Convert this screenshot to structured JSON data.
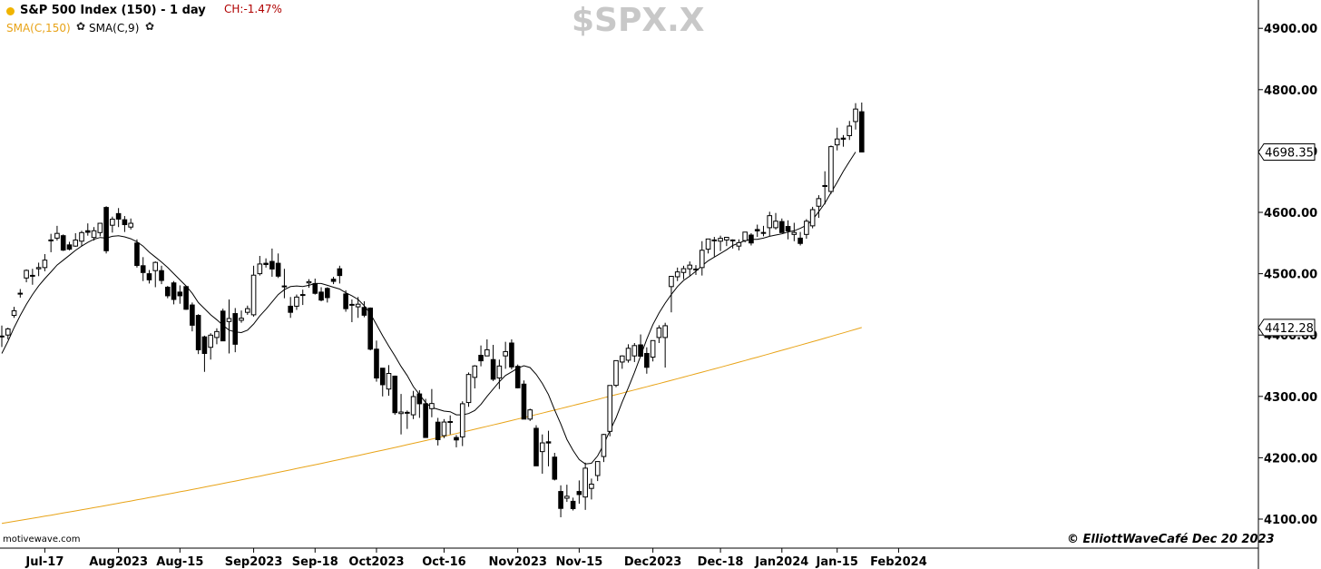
{
  "header": {
    "instrument": "S&P 500 Index (150) - 1 day",
    "change": "CH:-1.47%",
    "indicator_sma150": "SMA(C,150)",
    "indicator_sma9": "SMA(C,9)",
    "watermark_symbol": "$SPX.X",
    "credit": "motivewave.com",
    "copyright": "© ElliottWaveCafé Dec 20 2023"
  },
  "colors": {
    "sma150": "#e8a317",
    "sma9": "#000000",
    "candle_up_fill": "#ffffff",
    "candle_down_fill": "#000000",
    "change_text": "#b00000"
  },
  "chart_data": {
    "type": "candlestick",
    "title": "S&P 500 Index (150) - 1 day",
    "ylim": [
      4050,
      4960
    ],
    "y_ticks": [
      4100,
      4200,
      4300,
      4400,
      4500,
      4600,
      4700,
      4800,
      4900
    ],
    "y_tick_labels": [
      "4100.00",
      "4200.00",
      "4300.00",
      "4400.00",
      "4500.00",
      "4600.00",
      "4700.00",
      "4800.00",
      "4900.00"
    ],
    "x_ticks": [
      {
        "label": "Jul-17",
        "bar": 7
      },
      {
        "label": "Aug2023",
        "bar": 19
      },
      {
        "label": "Aug-15",
        "bar": 29
      },
      {
        "label": "Sep2023",
        "bar": 41
      },
      {
        "label": "Sep-18",
        "bar": 51
      },
      {
        "label": "Oct2023",
        "bar": 61
      },
      {
        "label": "Oct-16",
        "bar": 72
      },
      {
        "label": "Nov2023",
        "bar": 84
      },
      {
        "label": "Nov-15",
        "bar": 94
      },
      {
        "label": "Dec2023",
        "bar": 106
      },
      {
        "label": "Dec-18",
        "bar": 117
      },
      {
        "label": "Jan2024",
        "bar": 127
      },
      {
        "label": "Jan-15",
        "bar": 136
      },
      {
        "label": "Feb2024",
        "bar": 146
      }
    ],
    "last_price_labels": [
      {
        "label": "4698.35",
        "value": 4698.35,
        "series": "SMA(C,9)"
      },
      {
        "label": "4412.28",
        "value": 4412.28,
        "series": "SMA(C,150)"
      }
    ],
    "candles": [
      [
        4398.4,
        4415.5,
        4380.5,
        4398.4
      ],
      [
        4400.0,
        4412.0,
        4393.0,
        4410.0
      ],
      [
        4432.0,
        4446.0,
        4428.0,
        4439.6
      ],
      [
        4467.0,
        4475.0,
        4461.0,
        4468.2
      ],
      [
        4493.0,
        4507.0,
        4486.0,
        4505.4
      ],
      [
        4497.0,
        4508.0,
        4482.0,
        4497.3
      ],
      [
        4508.0,
        4518.0,
        4496.0,
        4510.0
      ],
      [
        4510.0,
        4532.0,
        4504.0,
        4522.1
      ],
      [
        4555.0,
        4565.0,
        4535.0,
        4554.7
      ],
      [
        4558.0,
        4578.0,
        4554.0,
        4565.7
      ],
      [
        4562.0,
        4564.0,
        4537.0,
        4538.5
      ],
      [
        4547.0,
        4552.0,
        4538.0,
        4540.0
      ],
      [
        4545.0,
        4566.0,
        4544.0,
        4554.9
      ],
      [
        4553.0,
        4570.0,
        4545.0,
        4567.0
      ],
      [
        4570.0,
        4582.0,
        4562.0,
        4567.5
      ],
      [
        4559.0,
        4576.0,
        4554.0,
        4570.0
      ],
      [
        4567.0,
        4583.0,
        4561.0,
        4582.2
      ],
      [
        4608.0,
        4610.0,
        4533.0,
        4537.4
      ],
      [
        4579.0,
        4593.0,
        4567.0,
        4588.9
      ],
      [
        4598.0,
        4607.0,
        4576.0,
        4589.0
      ],
      [
        4588.0,
        4594.0,
        4568.0,
        4580.0
      ],
      [
        4576.0,
        4590.0,
        4572.0,
        4582.2
      ],
      [
        4550.0,
        4556.0,
        4510.0,
        4513.4
      ],
      [
        4513.0,
        4527.0,
        4488.0,
        4501.9
      ],
      [
        4500.0,
        4506.0,
        4484.0,
        4490.0
      ],
      [
        4505.0,
        4520.0,
        4478.0,
        4518.4
      ],
      [
        4505.0,
        4513.0,
        4483.0,
        4489.0
      ],
      [
        4478.0,
        4480.0,
        4460.0,
        4464.0
      ],
      [
        4485.0,
        4488.0,
        4450.0,
        4458.0
      ],
      [
        4470.0,
        4481.0,
        4451.0,
        4464.0
      ],
      [
        4479.0,
        4479.0,
        4441.0,
        4442.0
      ],
      [
        4449.0,
        4453.0,
        4406.0,
        4416.0
      ],
      [
        4432.0,
        4434.0,
        4369.0,
        4376.0
      ],
      [
        4397.0,
        4399.0,
        4340.0,
        4370.0
      ],
      [
        4380.0,
        4403.0,
        4360.0,
        4399.8
      ],
      [
        4396.0,
        4411.0,
        4385.0,
        4405.7
      ],
      [
        4439.0,
        4443.0,
        4390.0,
        4390.5
      ],
      [
        4422.0,
        4458.0,
        4370.0,
        4427.0
      ],
      [
        4435.0,
        4444.0,
        4372.0,
        4385.0
      ],
      [
        4424.0,
        4440.0,
        4420.0,
        4427.5
      ],
      [
        4437.0,
        4448.0,
        4433.0,
        4443.0
      ],
      [
        4433.0,
        4513.0,
        4430.0,
        4497.6
      ],
      [
        4500.0,
        4529.0,
        4497.0,
        4515.8
      ],
      [
        4517.0,
        4525.0,
        4510.0,
        4515.0
      ],
      [
        4520.0,
        4541.0,
        4495.0,
        4507.7
      ],
      [
        4517.0,
        4533.0,
        4493.0,
        4496.0
      ],
      [
        4480.0,
        4508.0,
        4460.0,
        4480.0
      ],
      [
        4447.0,
        4462.0,
        4428.0,
        4437.0
      ],
      [
        4447.0,
        4466.0,
        4441.0,
        4461.9
      ],
      [
        4466.0,
        4474.0,
        4449.0,
        4465.5
      ],
      [
        4485.0,
        4491.0,
        4477.0,
        4487.0
      ],
      [
        4484.0,
        4492.0,
        4466.0,
        4468.0
      ],
      [
        4470.0,
        4478.0,
        4455.0,
        4457.0
      ],
      [
        4476.0,
        4478.0,
        4453.0,
        4461.0
      ],
      [
        4491.0,
        4495.0,
        4483.0,
        4487.5
      ],
      [
        4508.0,
        4513.0,
        4484.0,
        4497.0
      ],
      [
        4467.0,
        4473.0,
        4438.0,
        4443.0
      ],
      [
        4450.0,
        4458.0,
        4421.0,
        4450.0
      ],
      [
        4446.0,
        4462.0,
        4428.0,
        4450.3
      ],
      [
        4445.0,
        4455.0,
        4429.0,
        4432.3
      ],
      [
        4444.0,
        4445.0,
        4375.0,
        4377.0
      ],
      [
        4377.0,
        4391.0,
        4324.0,
        4330.0
      ],
      [
        4346.0,
        4346.0,
        4300.0,
        4319.0
      ],
      [
        4312.0,
        4351.0,
        4301.0,
        4337.4
      ],
      [
        4333.0,
        4334.0,
        4270.0,
        4273.5
      ],
      [
        4272.0,
        4304.0,
        4238.0,
        4274.5
      ],
      [
        4274.0,
        4277.0,
        4247.0,
        4273.0
      ],
      [
        4270.0,
        4309.0,
        4263.0,
        4299.7
      ],
      [
        4304.0,
        4310.0,
        4265.0,
        4288.0
      ],
      [
        4288.0,
        4296.0,
        4233.0,
        4233.0
      ],
      [
        4280.0,
        4312.0,
        4266.0,
        4288.4
      ],
      [
        4258.0,
        4265.0,
        4220.0,
        4229.5
      ],
      [
        4236.0,
        4263.0,
        4232.0,
        4258.2
      ],
      [
        4259.0,
        4269.0,
        4238.0,
        4258.0
      ],
      [
        4233.0,
        4237.0,
        4217.0,
        4229.0
      ],
      [
        4234.0,
        4292.0,
        4219.0,
        4288.0
      ],
      [
        4290.0,
        4339.0,
        4283.0,
        4335.7
      ],
      [
        4331.0,
        4351.0,
        4313.0,
        4349.6
      ],
      [
        4367.0,
        4383.0,
        4349.0,
        4358.0
      ],
      [
        4366.0,
        4393.0,
        4366.0,
        4376.0
      ],
      [
        4360.0,
        4384.0,
        4325.0,
        4328.0
      ],
      [
        4330.0,
        4360.0,
        4312.0,
        4349.5
      ],
      [
        4366.0,
        4389.0,
        4345.0,
        4373.0
      ],
      [
        4387.0,
        4393.0,
        4344.0,
        4348.0
      ],
      [
        4349.0,
        4352.0,
        4313.0,
        4314.0
      ],
      [
        4320.0,
        4326.0,
        4263.0,
        4263.0
      ],
      [
        4263.0,
        4280.0,
        4260.0,
        4278.0
      ],
      [
        4248.0,
        4253.0,
        4187.0,
        4186.8
      ],
      [
        4210.0,
        4238.0,
        4174.0,
        4224.2
      ],
      [
        4226.0,
        4244.0,
        4186.0,
        4224.0
      ],
      [
        4201.0,
        4208.0,
        4163.0,
        4165.0
      ],
      [
        4145.0,
        4155.0,
        4103.0,
        4117.4
      ],
      [
        4134.0,
        4156.0,
        4128.0,
        4137.2
      ],
      [
        4129.0,
        4135.0,
        4114.0,
        4117.0
      ],
      [
        4145.0,
        4163.0,
        4125.0,
        4140.0
      ],
      [
        4136.0,
        4192.0,
        4115.0,
        4183.0
      ],
      [
        4150.0,
        4166.0,
        4132.0,
        4157.0
      ],
      [
        4171.0,
        4194.0,
        4162.0,
        4193.8
      ],
      [
        4202.0,
        4239.0,
        4193.0,
        4237.9
      ],
      [
        4243.0,
        4317.0,
        4235.0,
        4317.8
      ],
      [
        4318.0,
        4357.0,
        4315.0,
        4358.3
      ],
      [
        4356.0,
        4367.0,
        4345.0,
        4365.9
      ],
      [
        4359.0,
        4385.0,
        4355.0,
        4378.4
      ],
      [
        4366.0,
        4387.0,
        4356.0,
        4382.8
      ],
      [
        4384.0,
        4401.0,
        4367.0,
        4365.5
      ],
      [
        4370.0,
        4380.0,
        4337.0,
        4347.4
      ],
      [
        4364.0,
        4391.0,
        4357.0,
        4391.0
      ],
      [
        4396.0,
        4416.0,
        4387.0,
        4411.6
      ],
      [
        4396.0,
        4420.0,
        4347.0,
        4415.2
      ],
      [
        4479.0,
        4490.0,
        4437.0,
        4495.7
      ],
      [
        4495.0,
        4510.0,
        4488.0,
        4502.9
      ],
      [
        4502.0,
        4513.0,
        4491.0,
        4508.2
      ],
      [
        4508.0,
        4520.0,
        4497.0,
        4514.0
      ],
      [
        4507.0,
        4514.0,
        4498.0,
        4507.6
      ],
      [
        4510.0,
        4553.0,
        4497.0,
        4538.2
      ],
      [
        4540.0,
        4557.0,
        4533.0,
        4556.6
      ],
      [
        4555.0,
        4560.0,
        4528.0,
        4554.9
      ],
      [
        4553.0,
        4562.0,
        4537.0,
        4557.6
      ],
      [
        4555.0,
        4560.0,
        4545.0,
        4559.3
      ],
      [
        4555.0,
        4556.0,
        4541.0,
        4554.9
      ],
      [
        4545.0,
        4556.0,
        4538.0,
        4550.6
      ],
      [
        4554.0,
        4568.0,
        4551.0,
        4567.8
      ],
      [
        4563.0,
        4566.0,
        4546.0,
        4550.1
      ],
      [
        4572.0,
        4580.0,
        4560.0,
        4569.8
      ],
      [
        4567.0,
        4578.0,
        4561.0,
        4567.2
      ],
      [
        4575.0,
        4601.0,
        4561.0,
        4594.6
      ],
      [
        4575.0,
        4599.0,
        4572.0,
        4585.6
      ],
      [
        4585.0,
        4590.0,
        4569.0,
        4567.0
      ],
      [
        4577.0,
        4587.0,
        4556.0,
        4569.8
      ],
      [
        4564.0,
        4583.0,
        4553.0,
        4567.2
      ],
      [
        4558.0,
        4568.0,
        4546.0,
        4549.3
      ],
      [
        4564.0,
        4589.0,
        4557.0,
        4585.6
      ],
      [
        4578.0,
        4609.0,
        4574.0,
        4604.4
      ],
      [
        4610.0,
        4628.0,
        4591.0,
        4622.4
      ],
      [
        4643.0,
        4667.0,
        4613.0,
        4643.7
      ],
      [
        4634.0,
        4709.0,
        4630.0,
        4707.1
      ],
      [
        4710.0,
        4738.0,
        4701.0,
        4719.6
      ],
      [
        4721.0,
        4726.0,
        4707.0,
        4719.2
      ],
      [
        4725.0,
        4749.0,
        4718.0,
        4740.6
      ],
      [
        4748.0,
        4778.0,
        4735.0,
        4768.4
      ],
      [
        4764.0,
        4779.0,
        4698.0,
        4698.4
      ]
    ],
    "sma9": [
      4370,
      4390,
      4412,
      4432,
      4450,
      4466,
      4480,
      4492,
      4503,
      4514,
      4522,
      4530,
      4538,
      4545,
      4551,
      4556,
      4559,
      4558,
      4561,
      4562,
      4560,
      4557,
      4552,
      4545,
      4535,
      4527,
      4519,
      4510,
      4500,
      4490,
      4480,
      4468,
      4453,
      4443,
      4433,
      4425,
      4416,
      4408,
      4405,
      4404,
      4408,
      4418,
      4431,
      4442,
      4454,
      4466,
      4474,
      4479,
      4480,
      4479,
      4481,
      4484,
      4484,
      4481,
      4478,
      4475,
      4469,
      4464,
      4458,
      4448,
      4435,
      4417,
      4399,
      4382,
      4366,
      4349,
      4334,
      4316,
      4303,
      4290,
      4282,
      4279,
      4276,
      4275,
      4270,
      4270,
      4272,
      4277,
      4287,
      4300,
      4312,
      4324,
      4334,
      4340,
      4346,
      4350,
      4347,
      4336,
      4321,
      4303,
      4278,
      4255,
      4230,
      4212,
      4197,
      4190,
      4191,
      4203,
      4222,
      4244,
      4265,
      4291,
      4314,
      4339,
      4366,
      4393,
      4417,
      4436,
      4452,
      4466,
      4479,
      4489,
      4496,
      4504,
      4513,
      4521,
      4527,
      4533,
      4539,
      4546,
      4550,
      4554,
      4556,
      4556,
      4558,
      4561,
      4563,
      4565,
      4568,
      4570,
      4574,
      4579,
      4588,
      4601,
      4615,
      4632,
      4649,
      4667,
      4683,
      4698.35
    ],
    "sma150_start": 4093,
    "sma150_end": 4412.28
  }
}
